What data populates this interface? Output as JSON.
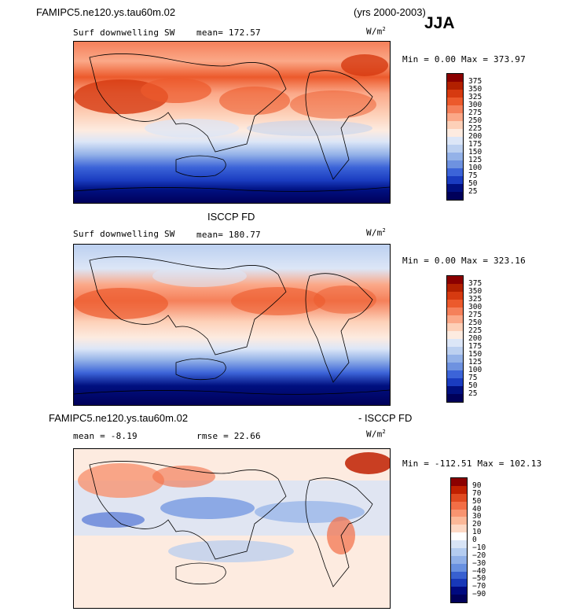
{
  "header": {
    "case_name": "FAMIPC5.ne120.ys.tau60m.02",
    "years": "(yrs 2000-2003)",
    "season": "JJA"
  },
  "panels": [
    {
      "title": "",
      "variable": "Surf downwelling SW",
      "stat": "mean=  172.57",
      "units": "W/m",
      "units_exp": "2",
      "range": "Min =    0.00 Max =  373.97",
      "levels": [
        "375",
        "350",
        "325",
        "300",
        "275",
        "250",
        "225",
        "200",
        "175",
        "150",
        "125",
        "100",
        "75",
        "50",
        "25"
      ]
    },
    {
      "title": "ISCCP FD",
      "variable": "Surf downwelling SW",
      "stat": "mean=  180.77",
      "units": "W/m",
      "units_exp": "2",
      "range": "Min =    0.00 Max =  323.16",
      "levels": [
        "375",
        "350",
        "325",
        "300",
        "275",
        "250",
        "225",
        "200",
        "175",
        "150",
        "125",
        "100",
        "75",
        "50",
        "25"
      ]
    },
    {
      "title_left": "FAMIPC5.ne120.ys.tau60m.02",
      "title_right": "- ISCCP FD",
      "mean": "mean =   -8.19",
      "rmse": "rmse =   22.66",
      "units": "W/m",
      "units_exp": "2",
      "range": "Min = -112.51 Max =  102.13",
      "levels": [
        "90",
        "70",
        "50",
        "40",
        "30",
        "20",
        "10",
        "0",
        "−10",
        "−20",
        "−30",
        "−40",
        "−50",
        "−70",
        "−90"
      ]
    }
  ],
  "colors": {
    "abs_scale": [
      "#8b0000",
      "#b22000",
      "#d63a10",
      "#ec5a2c",
      "#f5805a",
      "#fba888",
      "#fdd0b8",
      "#fdebe0",
      "#dce6f7",
      "#bcd0f0",
      "#94b2e8",
      "#6e92e0",
      "#3c64d8",
      "#1a3cc0",
      "#001080",
      "#00005a"
    ],
    "diff_scale": [
      "#8b0000",
      "#c02000",
      "#e04a20",
      "#f26e46",
      "#f89470",
      "#fbb898",
      "#fdd8c4",
      "#ffffff",
      "#d8e4f6",
      "#b4ccf0",
      "#90b0e8",
      "#6890e0",
      "#3860d0",
      "#1838b8",
      "#000a80",
      "#00005a"
    ]
  },
  "chart_data": [
    {
      "type": "heatmap",
      "title": "",
      "subtitle": "Surf downwelling SW",
      "mean": 172.57,
      "min": 0.0,
      "max": 373.97,
      "units": "W/m2",
      "contour_levels": [
        25,
        50,
        75,
        100,
        125,
        150,
        175,
        200,
        225,
        250,
        275,
        300,
        325,
        350,
        375
      ]
    },
    {
      "type": "heatmap",
      "title": "ISCCP FD",
      "subtitle": "Surf downwelling SW",
      "mean": 180.77,
      "min": 0.0,
      "max": 323.16,
      "units": "W/m2",
      "contour_levels": [
        25,
        50,
        75,
        100,
        125,
        150,
        175,
        200,
        225,
        250,
        275,
        300,
        325,
        350,
        375
      ]
    },
    {
      "type": "heatmap",
      "title": "FAMIPC5.ne120.ys.tau60m.02 - ISCCP FD",
      "mean": -8.19,
      "rmse": 22.66,
      "min": -112.51,
      "max": 102.13,
      "units": "W/m2",
      "contour_levels": [
        -90,
        -70,
        -50,
        -40,
        -30,
        -20,
        -10,
        0,
        10,
        20,
        30,
        40,
        50,
        70,
        90
      ]
    }
  ]
}
